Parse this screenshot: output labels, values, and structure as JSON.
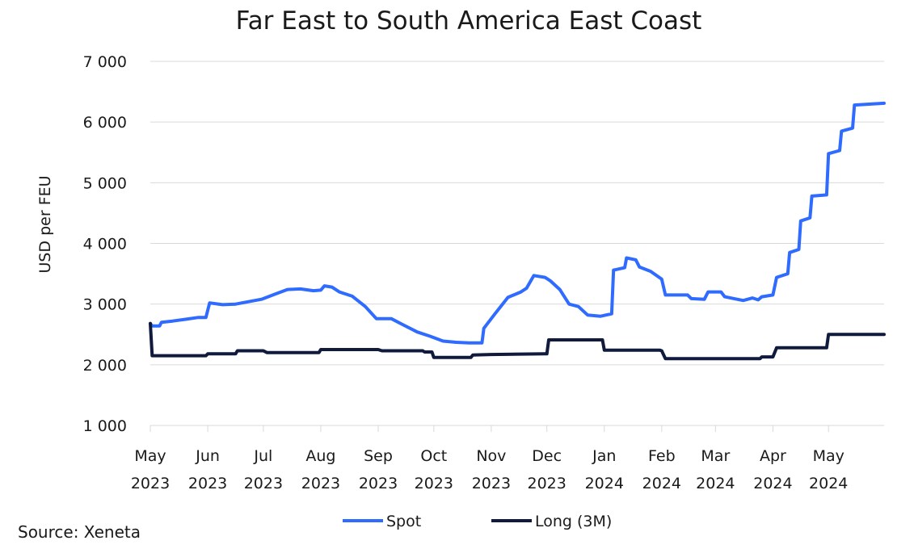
{
  "source": "Source: Xeneta",
  "chart_data": {
    "type": "line",
    "title": "Far East to South America East Coast",
    "xlabel": "",
    "ylabel": "USD per FEU",
    "ylim": [
      1000,
      7000
    ],
    "yticks": [
      1000,
      2000,
      3000,
      4000,
      5000,
      6000,
      7000
    ],
    "ytick_labels": [
      "1 000",
      "2 000",
      "3 000",
      "4 000",
      "5 000",
      "6 000",
      "7 000"
    ],
    "xlim": [
      "2023-05-01",
      "2024-05-31"
    ],
    "xticks": [
      {
        "date": "2023-05-01",
        "month": "May",
        "year": "2023"
      },
      {
        "date": "2023-06-01",
        "month": "Jun",
        "year": "2023"
      },
      {
        "date": "2023-07-01",
        "month": "Jul",
        "year": "2023"
      },
      {
        "date": "2023-08-01",
        "month": "Aug",
        "year": "2023"
      },
      {
        "date": "2023-09-01",
        "month": "Sep",
        "year": "2023"
      },
      {
        "date": "2023-10-01",
        "month": "Oct",
        "year": "2023"
      },
      {
        "date": "2023-11-01",
        "month": "Nov",
        "year": "2023"
      },
      {
        "date": "2023-12-01",
        "month": "Dec",
        "year": "2023"
      },
      {
        "date": "2024-01-01",
        "month": "Jan",
        "year": "2024"
      },
      {
        "date": "2024-02-01",
        "month": "Feb",
        "year": "2024"
      },
      {
        "date": "2024-03-01",
        "month": "Mar",
        "year": "2024"
      },
      {
        "date": "2024-04-01",
        "month": "Apr",
        "year": "2024"
      },
      {
        "date": "2024-05-01",
        "month": "May",
        "year": "2024"
      }
    ],
    "grid": true,
    "legend": "bottom-center",
    "series": [
      {
        "name": "Spot",
        "color": "#2f6bff",
        "points": [
          [
            "2023-05-01",
            2680
          ],
          [
            "2023-05-02",
            2640
          ],
          [
            "2023-05-06",
            2640
          ],
          [
            "2023-05-07",
            2700
          ],
          [
            "2023-05-13",
            2720
          ],
          [
            "2023-05-20",
            2750
          ],
          [
            "2023-05-27",
            2780
          ],
          [
            "2023-05-31",
            2780
          ],
          [
            "2023-06-02",
            3020
          ],
          [
            "2023-06-09",
            2990
          ],
          [
            "2023-06-16",
            3000
          ],
          [
            "2023-06-23",
            3040
          ],
          [
            "2023-06-30",
            3080
          ],
          [
            "2023-07-07",
            3160
          ],
          [
            "2023-07-14",
            3240
          ],
          [
            "2023-07-21",
            3250
          ],
          [
            "2023-07-28",
            3220
          ],
          [
            "2023-08-01",
            3230
          ],
          [
            "2023-08-03",
            3300
          ],
          [
            "2023-08-07",
            3280
          ],
          [
            "2023-08-11",
            3200
          ],
          [
            "2023-08-18",
            3130
          ],
          [
            "2023-08-25",
            2960
          ],
          [
            "2023-08-31",
            2760
          ],
          [
            "2023-09-08",
            2760
          ],
          [
            "2023-09-15",
            2650
          ],
          [
            "2023-09-22",
            2540
          ],
          [
            "2023-09-29",
            2470
          ],
          [
            "2023-10-06",
            2390
          ],
          [
            "2023-10-13",
            2370
          ],
          [
            "2023-10-20",
            2360
          ],
          [
            "2023-10-27",
            2360
          ],
          [
            "2023-10-28",
            2600
          ],
          [
            "2023-11-03",
            2840
          ],
          [
            "2023-11-10",
            3110
          ],
          [
            "2023-11-17",
            3200
          ],
          [
            "2023-11-20",
            3260
          ],
          [
            "2023-11-24",
            3470
          ],
          [
            "2023-11-30",
            3440
          ],
          [
            "2023-12-03",
            3380
          ],
          [
            "2023-12-08",
            3240
          ],
          [
            "2023-12-13",
            3000
          ],
          [
            "2023-12-18",
            2960
          ],
          [
            "2023-12-23",
            2820
          ],
          [
            "2023-12-30",
            2800
          ],
          [
            "2024-01-05",
            2840
          ],
          [
            "2024-01-06",
            3560
          ],
          [
            "2024-01-12",
            3600
          ],
          [
            "2024-01-13",
            3760
          ],
          [
            "2024-01-18",
            3730
          ],
          [
            "2024-01-20",
            3610
          ],
          [
            "2024-01-26",
            3540
          ],
          [
            "2024-02-01",
            3410
          ],
          [
            "2024-02-03",
            3150
          ],
          [
            "2024-02-15",
            3150
          ],
          [
            "2024-02-17",
            3090
          ],
          [
            "2024-02-24",
            3080
          ],
          [
            "2024-02-26",
            3200
          ],
          [
            "2024-03-04",
            3200
          ],
          [
            "2024-03-06",
            3120
          ],
          [
            "2024-03-11",
            3090
          ],
          [
            "2024-03-16",
            3060
          ],
          [
            "2024-03-21",
            3100
          ],
          [
            "2024-03-24",
            3070
          ],
          [
            "2024-03-26",
            3120
          ],
          [
            "2024-04-01",
            3150
          ],
          [
            "2024-04-03",
            3440
          ],
          [
            "2024-04-09",
            3500
          ],
          [
            "2024-04-10",
            3850
          ],
          [
            "2024-04-15",
            3900
          ],
          [
            "2024-04-16",
            4370
          ],
          [
            "2024-04-21",
            4420
          ],
          [
            "2024-04-22",
            4780
          ],
          [
            "2024-04-30",
            4800
          ],
          [
            "2024-05-01",
            5480
          ],
          [
            "2024-05-07",
            5530
          ],
          [
            "2024-05-08",
            5850
          ],
          [
            "2024-05-14",
            5900
          ],
          [
            "2024-05-15",
            6280
          ],
          [
            "2024-05-31",
            6310
          ]
        ]
      },
      {
        "name": "Long (3M)",
        "color": "#0f1a3c",
        "points": [
          [
            "2023-05-01",
            2680
          ],
          [
            "2023-05-02",
            2150
          ],
          [
            "2023-05-31",
            2150
          ],
          [
            "2023-06-01",
            2180
          ],
          [
            "2023-06-16",
            2180
          ],
          [
            "2023-06-17",
            2230
          ],
          [
            "2023-07-01",
            2230
          ],
          [
            "2023-07-03",
            2200
          ],
          [
            "2023-07-31",
            2200
          ],
          [
            "2023-08-01",
            2250
          ],
          [
            "2023-09-01",
            2250
          ],
          [
            "2023-09-03",
            2230
          ],
          [
            "2023-09-25",
            2230
          ],
          [
            "2023-09-26",
            2210
          ],
          [
            "2023-09-30",
            2210
          ],
          [
            "2023-10-01",
            2120
          ],
          [
            "2023-10-21",
            2120
          ],
          [
            "2023-10-22",
            2160
          ],
          [
            "2023-11-01",
            2170
          ],
          [
            "2023-11-30",
            2180
          ],
          [
            "2023-12-01",
            2180
          ],
          [
            "2023-12-02",
            2410
          ],
          [
            "2023-12-31",
            2410
          ],
          [
            "2024-01-01",
            2240
          ],
          [
            "2024-01-31",
            2240
          ],
          [
            "2024-02-01",
            2230
          ],
          [
            "2024-02-03",
            2100
          ],
          [
            "2024-03-25",
            2100
          ],
          [
            "2024-03-26",
            2130
          ],
          [
            "2024-04-01",
            2130
          ],
          [
            "2024-04-03",
            2280
          ],
          [
            "2024-04-30",
            2280
          ],
          [
            "2024-05-01",
            2500
          ],
          [
            "2024-05-31",
            2500
          ]
        ]
      }
    ]
  }
}
